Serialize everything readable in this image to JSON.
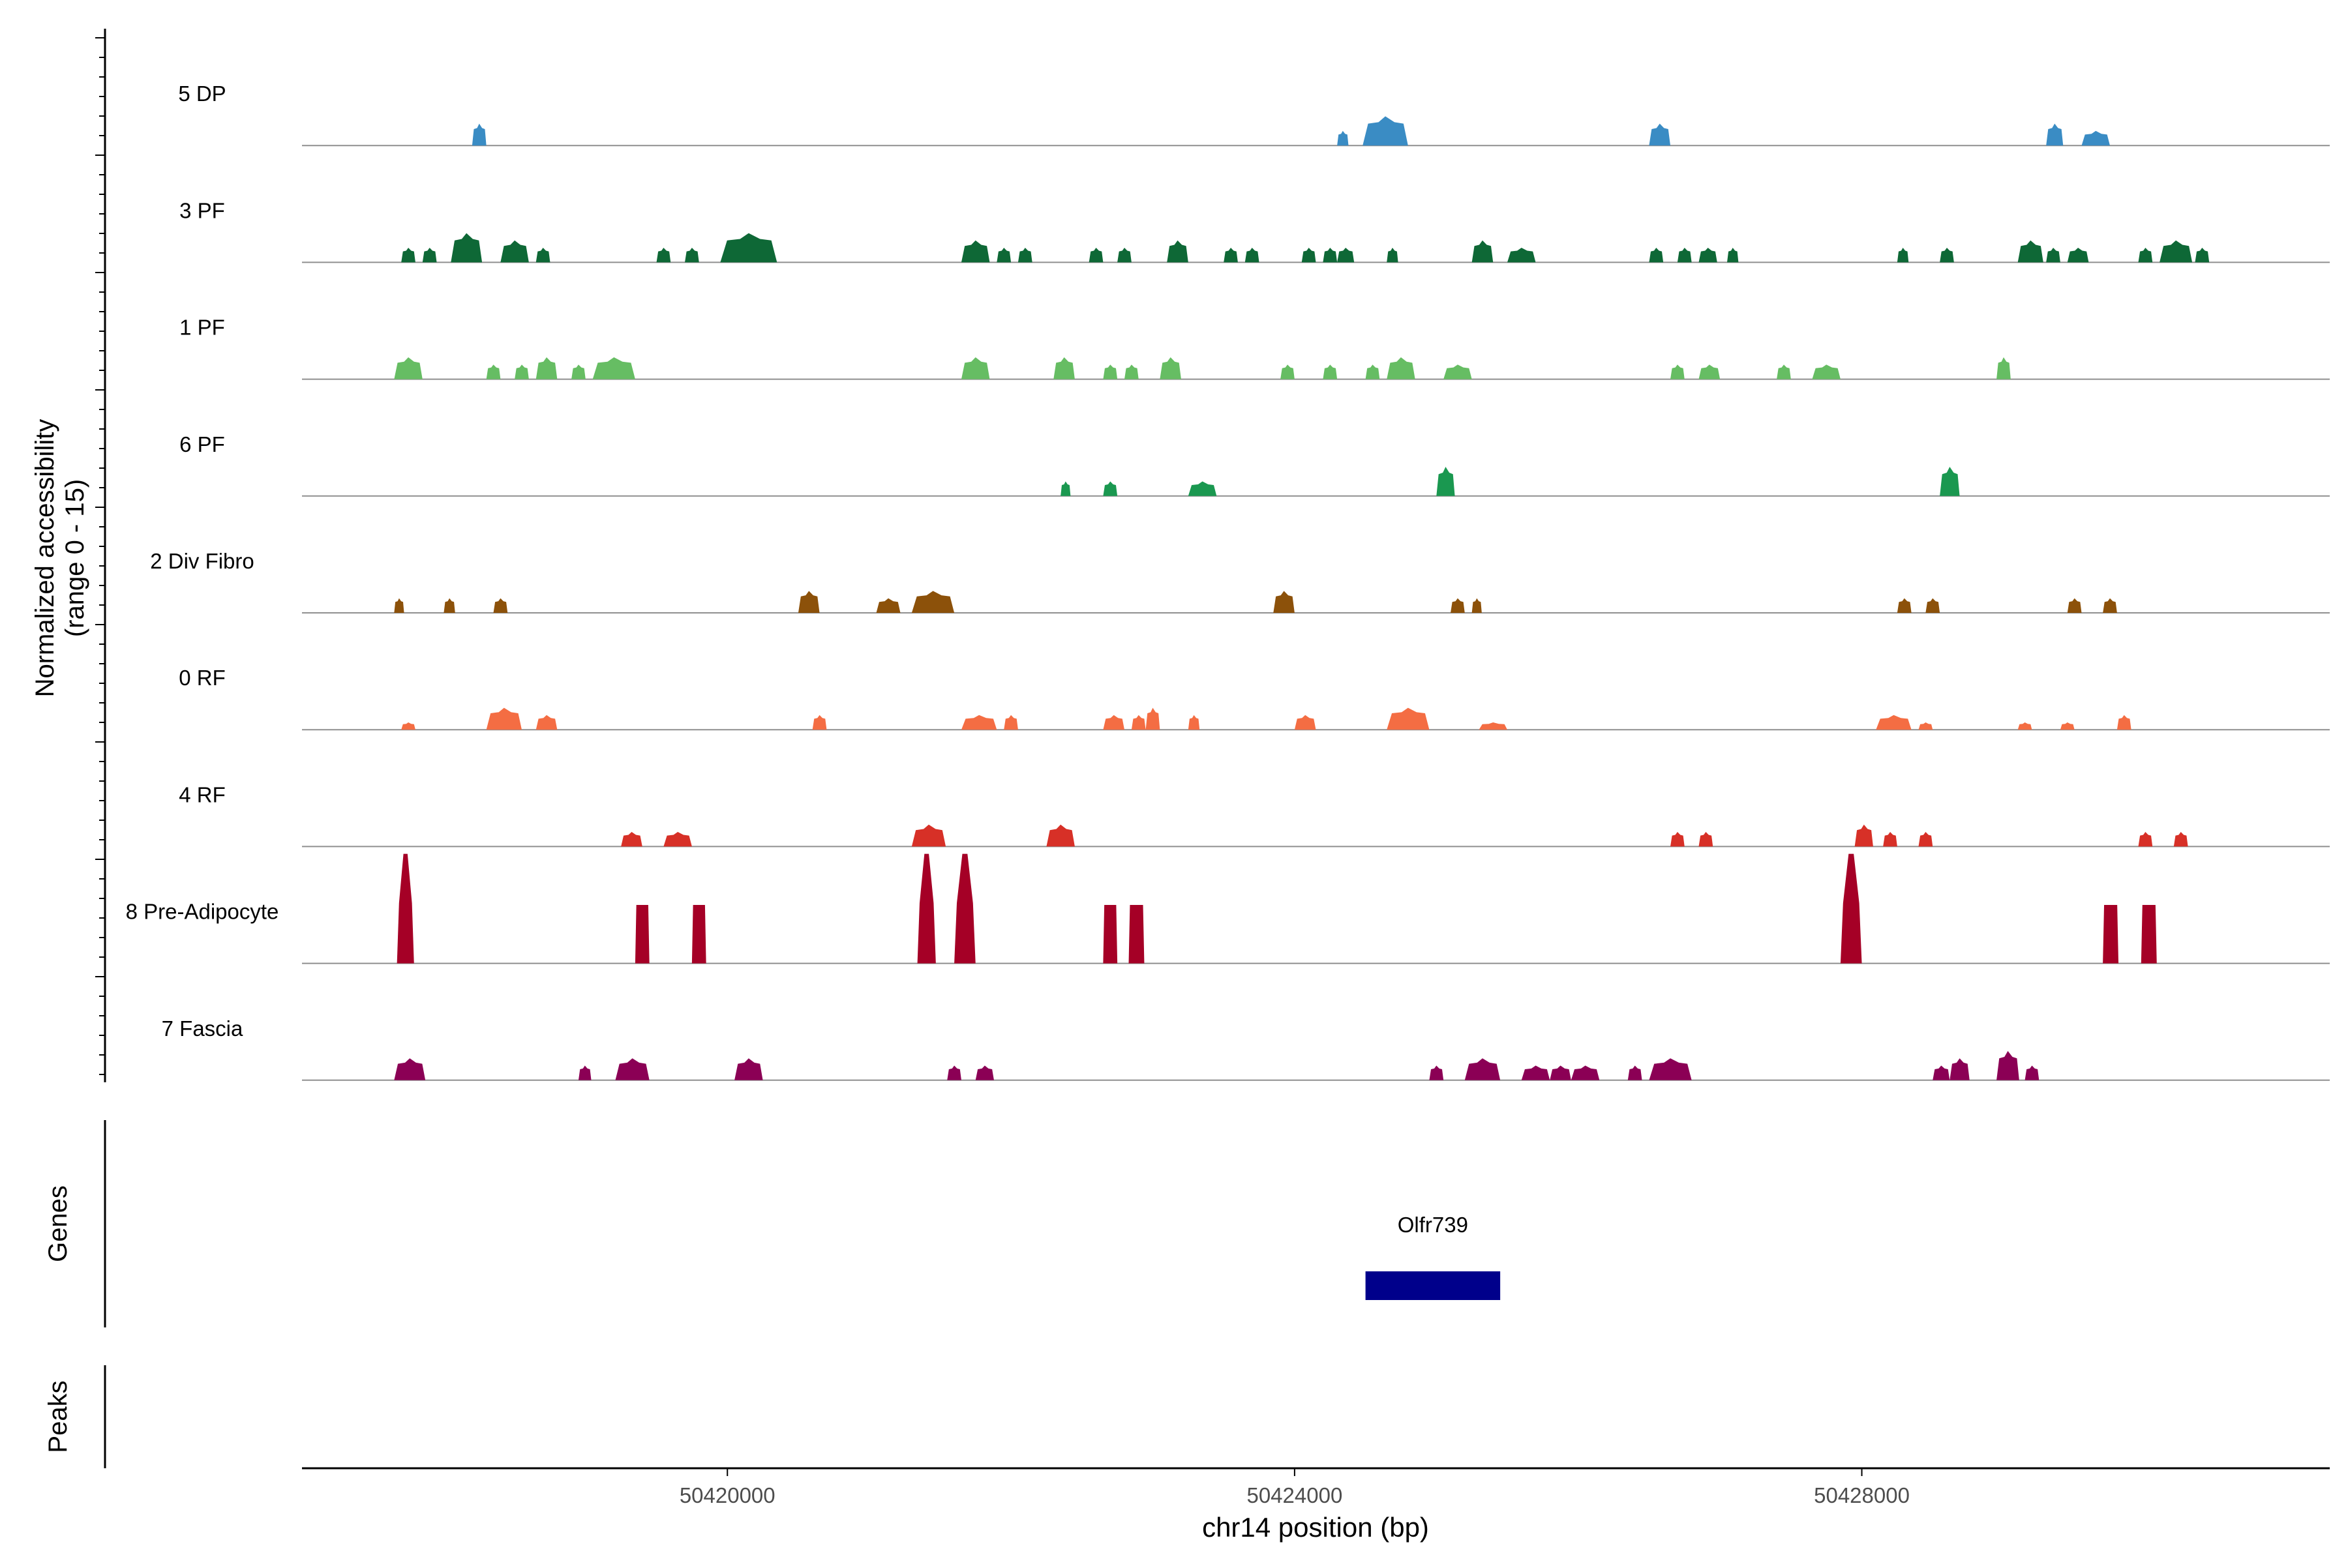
{
  "chart_data": {
    "type": "area",
    "title": "",
    "xlabel": "chr14 position (bp)",
    "ylabel": "Normalized accessibility",
    "ylabel_range": "(range 0 - 15)",
    "yrange": [
      0,
      15
    ],
    "xlim": [
      50417000,
      50431300
    ],
    "x_ticks": [
      50420000,
      50424000,
      50428000
    ],
    "x_tick_labels": [
      "50420000",
      "50424000",
      "50428000"
    ],
    "panel_labels": {
      "genes": "Genes",
      "peaks": "Peaks"
    },
    "series": [
      {
        "name": "5 DP",
        "color": "#3A8CC4",
        "peaks": [
          [
            50418200,
            50418300,
            3
          ],
          [
            50424300,
            50424380,
            2
          ],
          [
            50424480,
            50424800,
            4
          ],
          [
            50426500,
            50426650,
            3
          ],
          [
            50429300,
            50429420,
            3
          ],
          [
            50429550,
            50429750,
            2
          ]
        ]
      },
      {
        "name": "3 PF",
        "color": "#0E6836",
        "peaks": [
          [
            50417700,
            50417800,
            2
          ],
          [
            50417850,
            50417950,
            2
          ],
          [
            50418050,
            50418270,
            4
          ],
          [
            50418400,
            50418600,
            3
          ],
          [
            50418650,
            50418750,
            2
          ],
          [
            50419500,
            50419600,
            2
          ],
          [
            50419700,
            50419800,
            2
          ],
          [
            50419950,
            50420350,
            4
          ],
          [
            50421650,
            50421850,
            3
          ],
          [
            50421900,
            50422000,
            2
          ],
          [
            50422050,
            50422150,
            2
          ],
          [
            50422550,
            50422650,
            2
          ],
          [
            50422750,
            50422850,
            2
          ],
          [
            50423100,
            50423250,
            3
          ],
          [
            50423500,
            50423600,
            2
          ],
          [
            50423650,
            50423750,
            2
          ],
          [
            50424050,
            50424150,
            2
          ],
          [
            50424200,
            50424300,
            2
          ],
          [
            50424300,
            50424420,
            2
          ],
          [
            50424650,
            50424730,
            2
          ],
          [
            50425250,
            50425400,
            3
          ],
          [
            50425500,
            50425700,
            2
          ],
          [
            50426500,
            50426600,
            2
          ],
          [
            50426700,
            50426800,
            2
          ],
          [
            50426850,
            50426980,
            2
          ],
          [
            50427050,
            50427130,
            2
          ],
          [
            50428250,
            50428330,
            2
          ],
          [
            50428550,
            50428650,
            2
          ],
          [
            50429100,
            50429280,
            3
          ],
          [
            50429300,
            50429400,
            2
          ],
          [
            50429450,
            50429600,
            2
          ],
          [
            50429950,
            50430050,
            2
          ],
          [
            50430100,
            50430330,
            3
          ],
          [
            50430350,
            50430450,
            2
          ]
        ]
      },
      {
        "name": "1 PF",
        "color": "#66BD63",
        "peaks": [
          [
            50417650,
            50417850,
            3
          ],
          [
            50418300,
            50418400,
            2
          ],
          [
            50418500,
            50418600,
            2
          ],
          [
            50418650,
            50418800,
            3
          ],
          [
            50418900,
            50419000,
            2
          ],
          [
            50419050,
            50419350,
            3
          ],
          [
            50421650,
            50421850,
            3
          ],
          [
            50422300,
            50422450,
            3
          ],
          [
            50422650,
            50422750,
            2
          ],
          [
            50422800,
            50422900,
            2
          ],
          [
            50423050,
            50423200,
            3
          ],
          [
            50423900,
            50424000,
            2
          ],
          [
            50424200,
            50424300,
            2
          ],
          [
            50424500,
            50424600,
            2
          ],
          [
            50424650,
            50424850,
            3
          ],
          [
            50425050,
            50425250,
            2
          ],
          [
            50426650,
            50426750,
            2
          ],
          [
            50426850,
            50427000,
            2
          ],
          [
            50427400,
            50427500,
            2
          ],
          [
            50427650,
            50427850,
            2
          ],
          [
            50428950,
            50429050,
            3
          ]
        ]
      },
      {
        "name": "6 PF",
        "color": "#1A9850",
        "peaks": [
          [
            50422350,
            50422420,
            2
          ],
          [
            50422650,
            50422750,
            2
          ],
          [
            50423250,
            50423450,
            2
          ],
          [
            50425000,
            50425130,
            4
          ],
          [
            50428550,
            50428690,
            4
          ]
        ]
      },
      {
        "name": "2 Div Fibro",
        "color": "#8C510A",
        "peaks": [
          [
            50417650,
            50417720,
            2
          ],
          [
            50418000,
            50418080,
            2
          ],
          [
            50418350,
            50418450,
            2
          ],
          [
            50420500,
            50420650,
            3
          ],
          [
            50421050,
            50421220,
            2
          ],
          [
            50421300,
            50421600,
            3
          ],
          [
            50423850,
            50424000,
            3
          ],
          [
            50425100,
            50425200,
            2
          ],
          [
            50425250,
            50425320,
            2
          ],
          [
            50428250,
            50428350,
            2
          ],
          [
            50428450,
            50428550,
            2
          ],
          [
            50429450,
            50429550,
            2
          ],
          [
            50429700,
            50429800,
            2
          ]
        ]
      },
      {
        "name": "0 RF",
        "color": "#F46D43",
        "peaks": [
          [
            50417700,
            50417800,
            1
          ],
          [
            50418300,
            50418550,
            3
          ],
          [
            50418650,
            50418800,
            2
          ],
          [
            50420600,
            50420700,
            2
          ],
          [
            50421650,
            50421900,
            2
          ],
          [
            50421950,
            50422050,
            2
          ],
          [
            50422650,
            50422800,
            2
          ],
          [
            50422850,
            50422950,
            2
          ],
          [
            50422950,
            50423050,
            3
          ],
          [
            50423250,
            50423330,
            2
          ],
          [
            50424000,
            50424150,
            2
          ],
          [
            50424650,
            50424950,
            3
          ],
          [
            50425300,
            50425500,
            1
          ],
          [
            50428100,
            50428350,
            2
          ],
          [
            50428400,
            50428500,
            1
          ],
          [
            50429100,
            50429200,
            1
          ],
          [
            50429400,
            50429500,
            1
          ],
          [
            50429800,
            50429900,
            2
          ]
        ]
      },
      {
        "name": "4 RF",
        "color": "#D73027",
        "peaks": [
          [
            50419250,
            50419400,
            2
          ],
          [
            50419550,
            50419750,
            2
          ],
          [
            50421300,
            50421540,
            3
          ],
          [
            50422250,
            50422450,
            3
          ],
          [
            50426650,
            50426750,
            2
          ],
          [
            50426850,
            50426950,
            2
          ],
          [
            50427950,
            50428080,
            3
          ],
          [
            50428150,
            50428250,
            2
          ],
          [
            50428400,
            50428500,
            2
          ],
          [
            50429950,
            50430050,
            2
          ],
          [
            50430200,
            50430300,
            2
          ]
        ]
      },
      {
        "name": "8 Pre-Adipocyte",
        "color": "#A50026",
        "peaks": [
          [
            50417670,
            50417790,
            15
          ],
          [
            50419350,
            50419450,
            8
          ],
          [
            50419750,
            50419850,
            8
          ],
          [
            50421340,
            50421470,
            15
          ],
          [
            50421600,
            50421750,
            15
          ],
          [
            50422650,
            50422750,
            8
          ],
          [
            50422830,
            50422940,
            8
          ],
          [
            50427850,
            50428000,
            15
          ],
          [
            50429700,
            50429810,
            8
          ],
          [
            50429970,
            50430080,
            8
          ]
        ]
      },
      {
        "name": "7 Fascia",
        "color": "#8B0055",
        "peaks": [
          [
            50417650,
            50417870,
            3
          ],
          [
            50418950,
            50419040,
            2
          ],
          [
            50419210,
            50419450,
            3
          ],
          [
            50420050,
            50420250,
            3
          ],
          [
            50421550,
            50421650,
            2
          ],
          [
            50421750,
            50421880,
            2
          ],
          [
            50424950,
            50425050,
            2
          ],
          [
            50425200,
            50425450,
            3
          ],
          [
            50425600,
            50425800,
            2
          ],
          [
            50425800,
            50425950,
            2
          ],
          [
            50425950,
            50426150,
            2
          ],
          [
            50426350,
            50426450,
            2
          ],
          [
            50426500,
            50426800,
            3
          ],
          [
            50428500,
            50428620,
            2
          ],
          [
            50428620,
            50428760,
            3
          ],
          [
            50428950,
            50429110,
            4
          ],
          [
            50429150,
            50429250,
            2
          ]
        ]
      }
    ],
    "genes": [
      {
        "name": "Olfr739",
        "start": 50424500,
        "end": 50425450
      }
    ]
  }
}
